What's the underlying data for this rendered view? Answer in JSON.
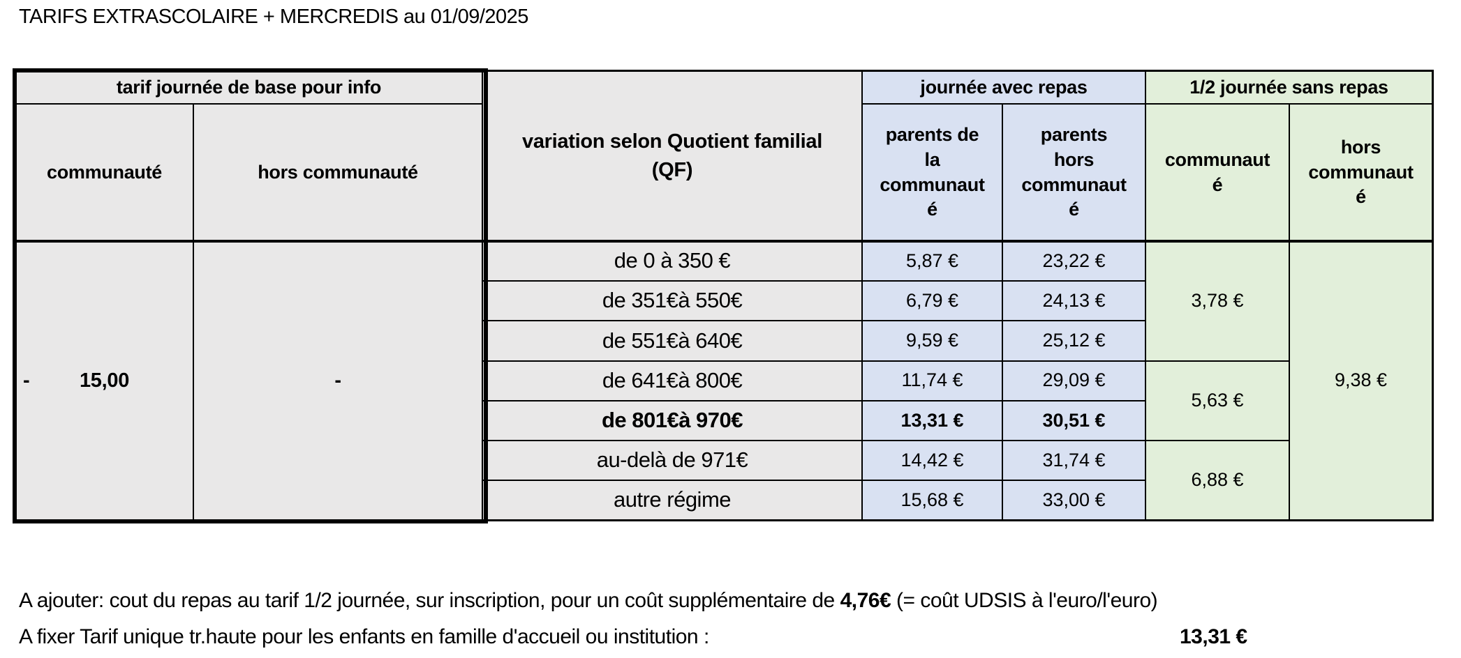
{
  "title": "TARIFS EXTRASCOLAIRE + MERCREDIS au 01/09/2025",
  "table": {
    "groups": {
      "left": "tarif journée de base pour info",
      "qf": "variation selon Quotient familial\n(QF)",
      "meal": "journée avec repas",
      "half": "1/2 journée sans repas"
    },
    "subheaders": {
      "communaute": "communauté",
      "hors_communaute": "hors communauté",
      "parents_in": "parents de\nla\ncommunaut\né",
      "parents_out": "parents\nhors\ncommunaut\né",
      "half_in": "communaut\né",
      "half_out": "hors\ncommunaut\né"
    },
    "base_day": {
      "communaute_dash": "-",
      "communaute_value": "15,00",
      "hors_communaute_dash": "-"
    },
    "rows": [
      {
        "qf": "de 0 à 350 €",
        "meal_in": "5,87 €",
        "meal_out": "23,22 €"
      },
      {
        "qf": "de 351€à 550€",
        "meal_in": "6,79 €",
        "meal_out": "24,13 €"
      },
      {
        "qf": "de 551€à 640€",
        "meal_in": "9,59 €",
        "meal_out": "25,12 €"
      },
      {
        "qf": "de 641€à 800€",
        "meal_in": "11,74 €",
        "meal_out": "29,09 €"
      },
      {
        "qf": "de 801€à 970€",
        "meal_in": "13,31 €",
        "meal_out": "30,51 €"
      },
      {
        "qf": "au-delà de 971€",
        "meal_in": "14,42 €",
        "meal_out": "31,74 €"
      },
      {
        "qf": "autre régime",
        "meal_in": "15,68 €",
        "meal_out": "33,00 €"
      }
    ],
    "half_day": {
      "tier_low": "3,78 €",
      "tier_mid": "5,63 €",
      "tier_high": "6,88 €",
      "hors_communaute": "9,38 €"
    }
  },
  "footnotes": {
    "line1_prefix": "A ajouter: cout du repas au tarif 1/2 journée, sur inscription, pour un coût supplémentaire de ",
    "line1_bold": "4,76€",
    "line1_suffix": " (= coût UDSIS à l'euro/l'euro)",
    "line2_text": "A fixer Tarif unique tr.haute pour les enfants en famille d'accueil ou institution :",
    "line2_value": "13,31 €"
  },
  "colors": {
    "gray_fill": "#e9e8e8",
    "blue_fill": "#d9e1f2",
    "green_fill": "#e2efda",
    "border": "#000000"
  }
}
